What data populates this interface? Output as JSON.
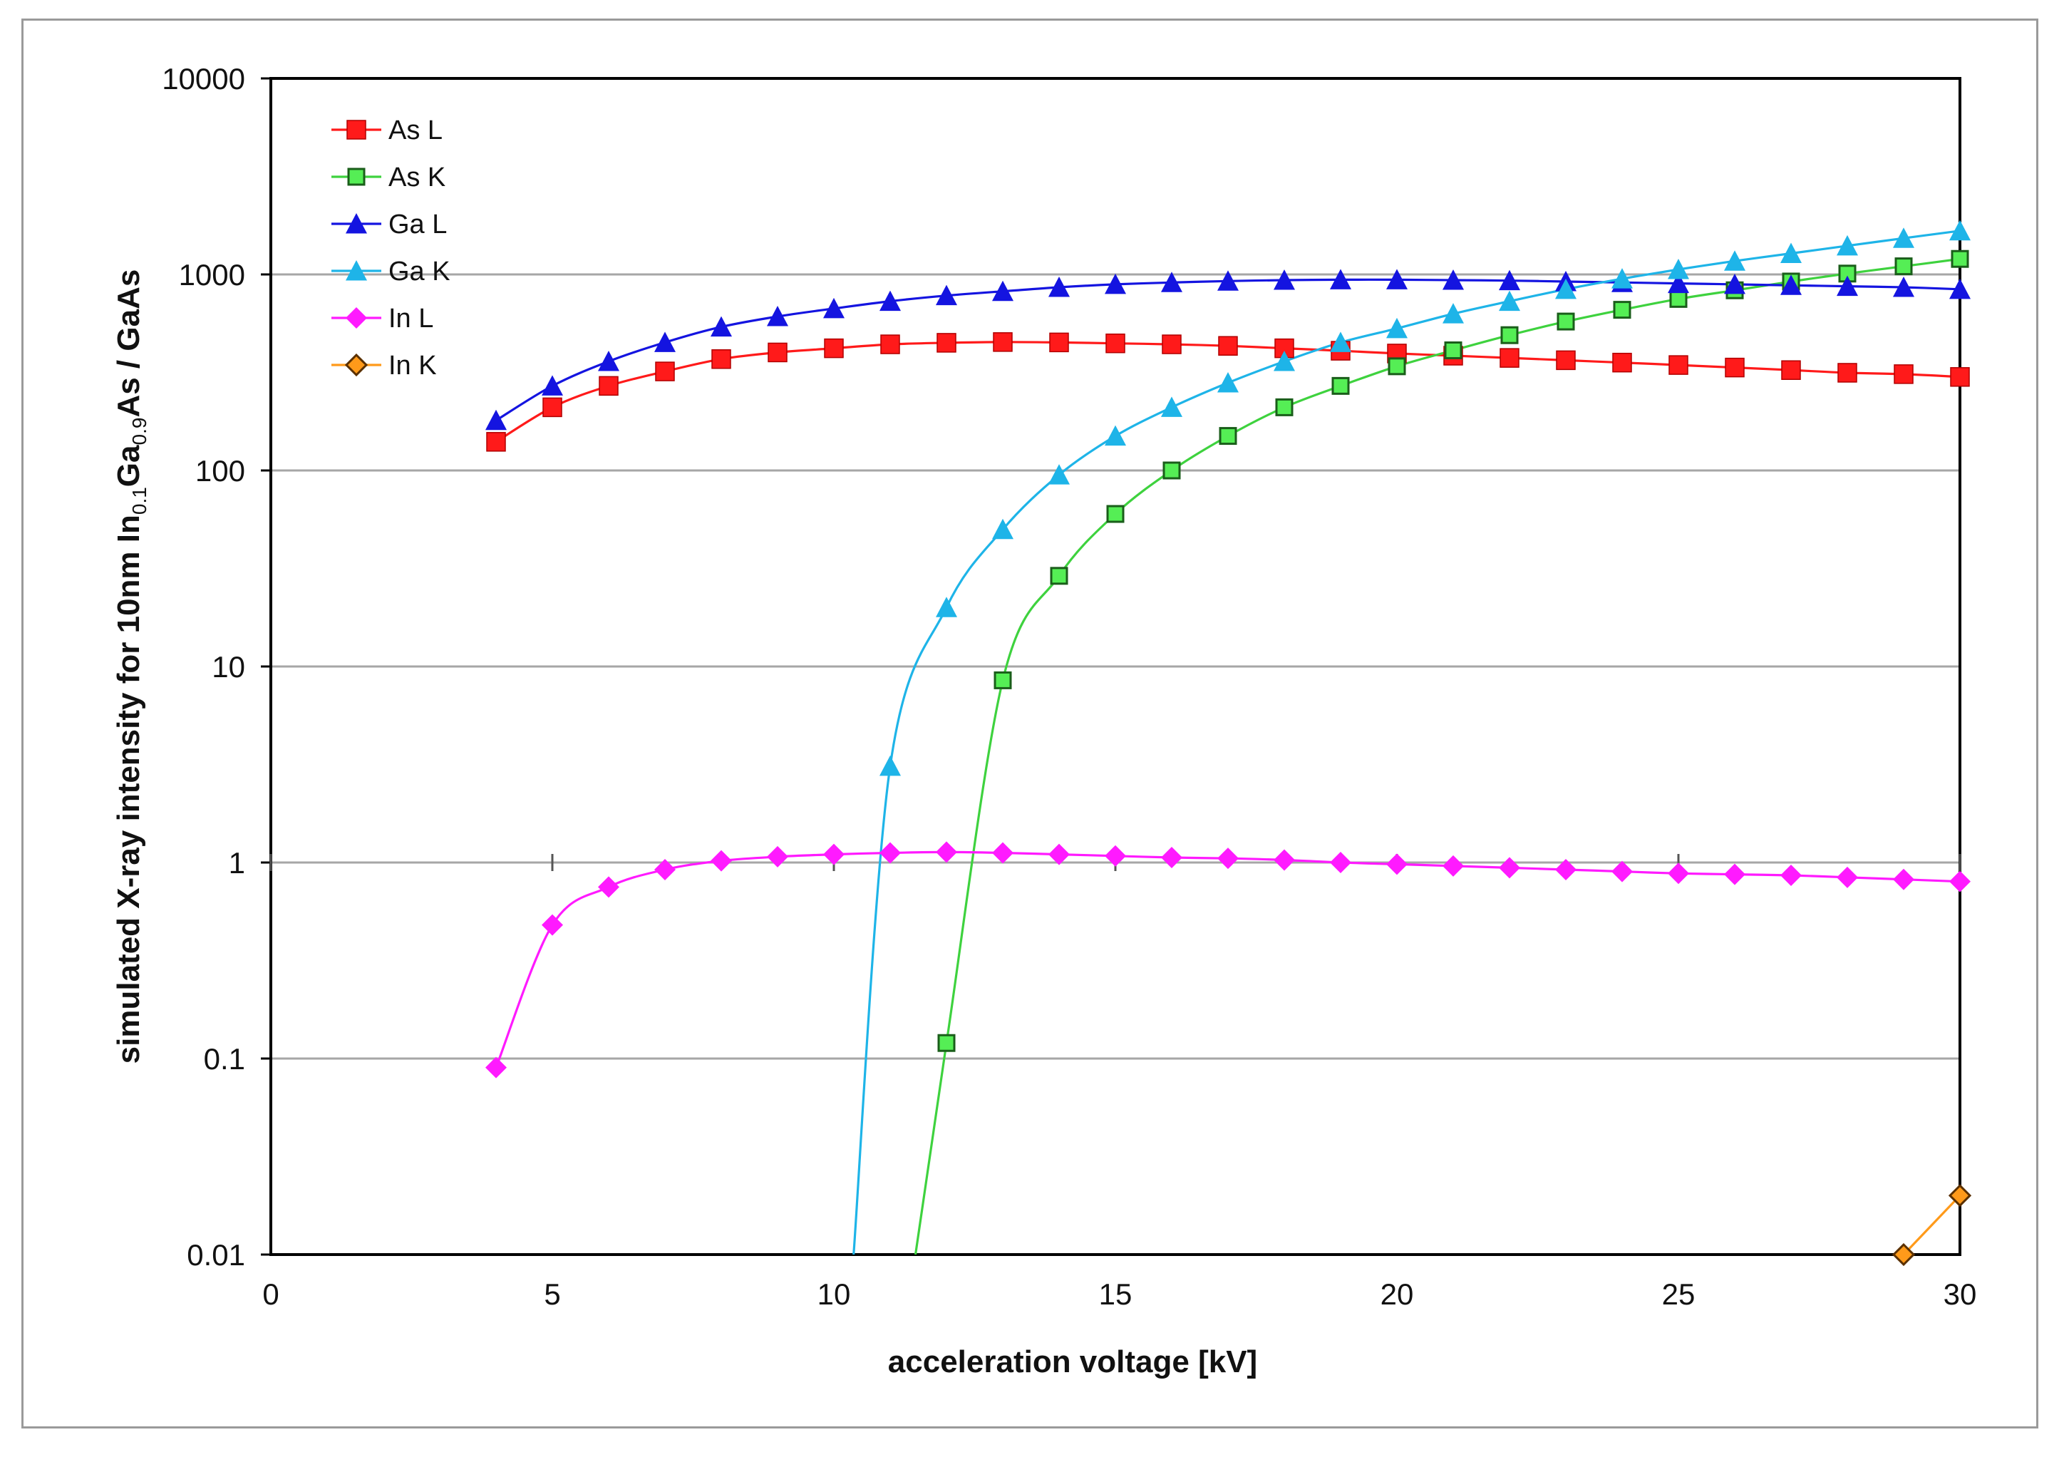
{
  "chart_data": {
    "type": "line",
    "title": "",
    "xlabel": "acceleration voltage [kV]",
    "ylabel_parts": {
      "prefix": "simulated X-ray intensity for 10nm In",
      "sub1": "0.1",
      "mid": "Ga",
      "sub2": "0.9",
      "suffix": "As / GaAs"
    },
    "xlim": [
      0,
      30
    ],
    "ylim": [
      0.01,
      10000
    ],
    "yscale": "log",
    "x_ticks": [
      "0",
      "5",
      "10",
      "15",
      "20",
      "25",
      "30"
    ],
    "y_ticks": [
      "0.01",
      "0.1",
      "1",
      "10",
      "100",
      "1000",
      "10000"
    ],
    "grid": "horizontal",
    "legend_position": "top-left",
    "series": [
      {
        "name": "As L",
        "color": "#ff1a1a",
        "marker": "square",
        "x": [
          4,
          5,
          6,
          7,
          8,
          9,
          10,
          11,
          12,
          13,
          14,
          15,
          16,
          17,
          18,
          19,
          20,
          21,
          22,
          23,
          24,
          25,
          26,
          27,
          28,
          29,
          30
        ],
        "y": [
          140,
          210,
          270,
          320,
          370,
          400,
          420,
          440,
          448,
          452,
          450,
          445,
          440,
          432,
          420,
          408,
          395,
          385,
          375,
          365,
          355,
          345,
          335,
          325,
          315,
          310,
          300
        ]
      },
      {
        "name": "As K",
        "color": "#3ed23e",
        "marker": "square-open",
        "x": [
          11.45,
          12,
          13,
          14,
          15,
          16,
          17,
          18,
          19,
          20,
          21,
          22,
          23,
          24,
          25,
          26,
          27,
          28,
          29,
          30
        ],
        "y": [
          0.01,
          0.12,
          8.5,
          29,
          60,
          100,
          150,
          210,
          270,
          340,
          410,
          490,
          575,
          660,
          750,
          830,
          920,
          1010,
          1100,
          1200
        ]
      },
      {
        "name": "Ga L",
        "color": "#1414e0",
        "marker": "triangle",
        "x": [
          4,
          5,
          6,
          7,
          8,
          9,
          10,
          11,
          12,
          13,
          14,
          15,
          16,
          17,
          18,
          19,
          20,
          21,
          22,
          23,
          24,
          25,
          26,
          27,
          28,
          29,
          30
        ],
        "y": [
          180,
          270,
          360,
          450,
          540,
          610,
          670,
          730,
          780,
          820,
          860,
          890,
          910,
          925,
          935,
          940,
          940,
          935,
          930,
          920,
          910,
          900,
          890,
          880,
          870,
          860,
          840
        ]
      },
      {
        "name": "Ga K",
        "color": "#1eb4e8",
        "marker": "triangle",
        "x": [
          10.35,
          11,
          12,
          13,
          14,
          15,
          16,
          17,
          18,
          19,
          20,
          21,
          22,
          23,
          24,
          25,
          26,
          27,
          28,
          29,
          30
        ],
        "y": [
          0.01,
          3.1,
          20,
          50,
          95,
          150,
          210,
          280,
          360,
          450,
          530,
          630,
          730,
          840,
          950,
          1060,
          1170,
          1280,
          1400,
          1530,
          1670
        ]
      },
      {
        "name": "In L",
        "color": "#ff1aff",
        "marker": "diamond",
        "x": [
          4,
          5,
          6,
          7,
          8,
          9,
          10,
          11,
          12,
          13,
          14,
          15,
          16,
          17,
          18,
          19,
          20,
          21,
          22,
          23,
          24,
          25,
          26,
          27,
          28,
          29,
          30
        ],
        "y": [
          0.09,
          0.48,
          0.75,
          0.92,
          1.02,
          1.07,
          1.1,
          1.12,
          1.13,
          1.12,
          1.1,
          1.08,
          1.06,
          1.05,
          1.03,
          1.0,
          0.98,
          0.96,
          0.94,
          0.92,
          0.9,
          0.88,
          0.87,
          0.86,
          0.84,
          0.82,
          0.8
        ]
      },
      {
        "name": "In K",
        "color": "#ff9a1a",
        "marker": "diamond-dark",
        "x": [
          29,
          30
        ],
        "y": [
          0.01,
          0.02
        ]
      }
    ]
  }
}
